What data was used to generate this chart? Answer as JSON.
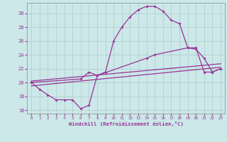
{
  "xlabel": "Windchill (Refroidissement éolien,°C)",
  "background_color": "#cce8e8",
  "grid_color": "#aacccc",
  "line_color": "#993399",
  "spine_color": "#888888",
  "xlim": [
    -0.5,
    23.5
  ],
  "ylim": [
    15.5,
    31.5
  ],
  "xticks": [
    0,
    1,
    2,
    3,
    4,
    5,
    6,
    7,
    8,
    9,
    10,
    11,
    12,
    13,
    14,
    15,
    16,
    17,
    18,
    19,
    20,
    21,
    22,
    23
  ],
  "yticks": [
    16,
    18,
    20,
    22,
    24,
    26,
    28,
    30
  ],
  "curve1_x": [
    0,
    1,
    2,
    3,
    4,
    5,
    6,
    7,
    8,
    9,
    10,
    11,
    12,
    13,
    14,
    15,
    16,
    17,
    18,
    19,
    20,
    21,
    22,
    23
  ],
  "curve1_y": [
    20.0,
    19.0,
    18.2,
    17.5,
    17.5,
    17.5,
    16.2,
    16.7,
    21.0,
    21.5,
    26.0,
    28.0,
    29.5,
    30.5,
    31.0,
    31.0,
    30.3,
    29.0,
    28.5,
    25.0,
    24.8,
    23.5,
    21.5,
    22.0
  ],
  "curve2_x": [
    0,
    6,
    7,
    8,
    14,
    15,
    19,
    20,
    21,
    22,
    23
  ],
  "curve2_y": [
    20.0,
    20.5,
    21.5,
    21.0,
    23.5,
    24.0,
    25.0,
    25.0,
    21.5,
    21.5,
    22.0
  ],
  "curve3_x": [
    0,
    23
  ],
  "curve3_y": [
    19.5,
    22.2
  ],
  "curve4_x": [
    0,
    23
  ],
  "curve4_y": [
    20.2,
    22.7
  ]
}
